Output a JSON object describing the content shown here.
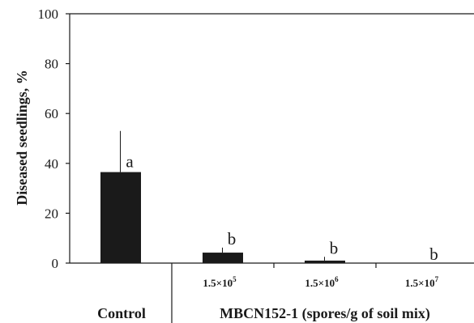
{
  "chart_data": {
    "type": "bar",
    "ylabel": "Diseased seedlings, %",
    "ylim": [
      0,
      100
    ],
    "yticks": [
      "0",
      "20",
      "40",
      "60",
      "80",
      "100"
    ],
    "categories": [
      {
        "tick_base": "",
        "tick_exp": "",
        "value": 36.5,
        "error": 16.5,
        "significance": "a"
      },
      {
        "tick_base": "1.5×10",
        "tick_exp": "5",
        "value": 4.2,
        "error": 2.0,
        "significance": "b"
      },
      {
        "tick_base": "1.5×10",
        "tick_exp": "6",
        "value": 1.0,
        "error": 1.5,
        "significance": "b"
      },
      {
        "tick_base": "1.5×10",
        "tick_exp": "7",
        "value": 0.0,
        "error": 0.0,
        "significance": "b"
      }
    ],
    "groups": {
      "control": "Control",
      "treatment": "MBCN152-1 (spores/g of soil mix)"
    },
    "bar_color": "#1a1a1a"
  }
}
